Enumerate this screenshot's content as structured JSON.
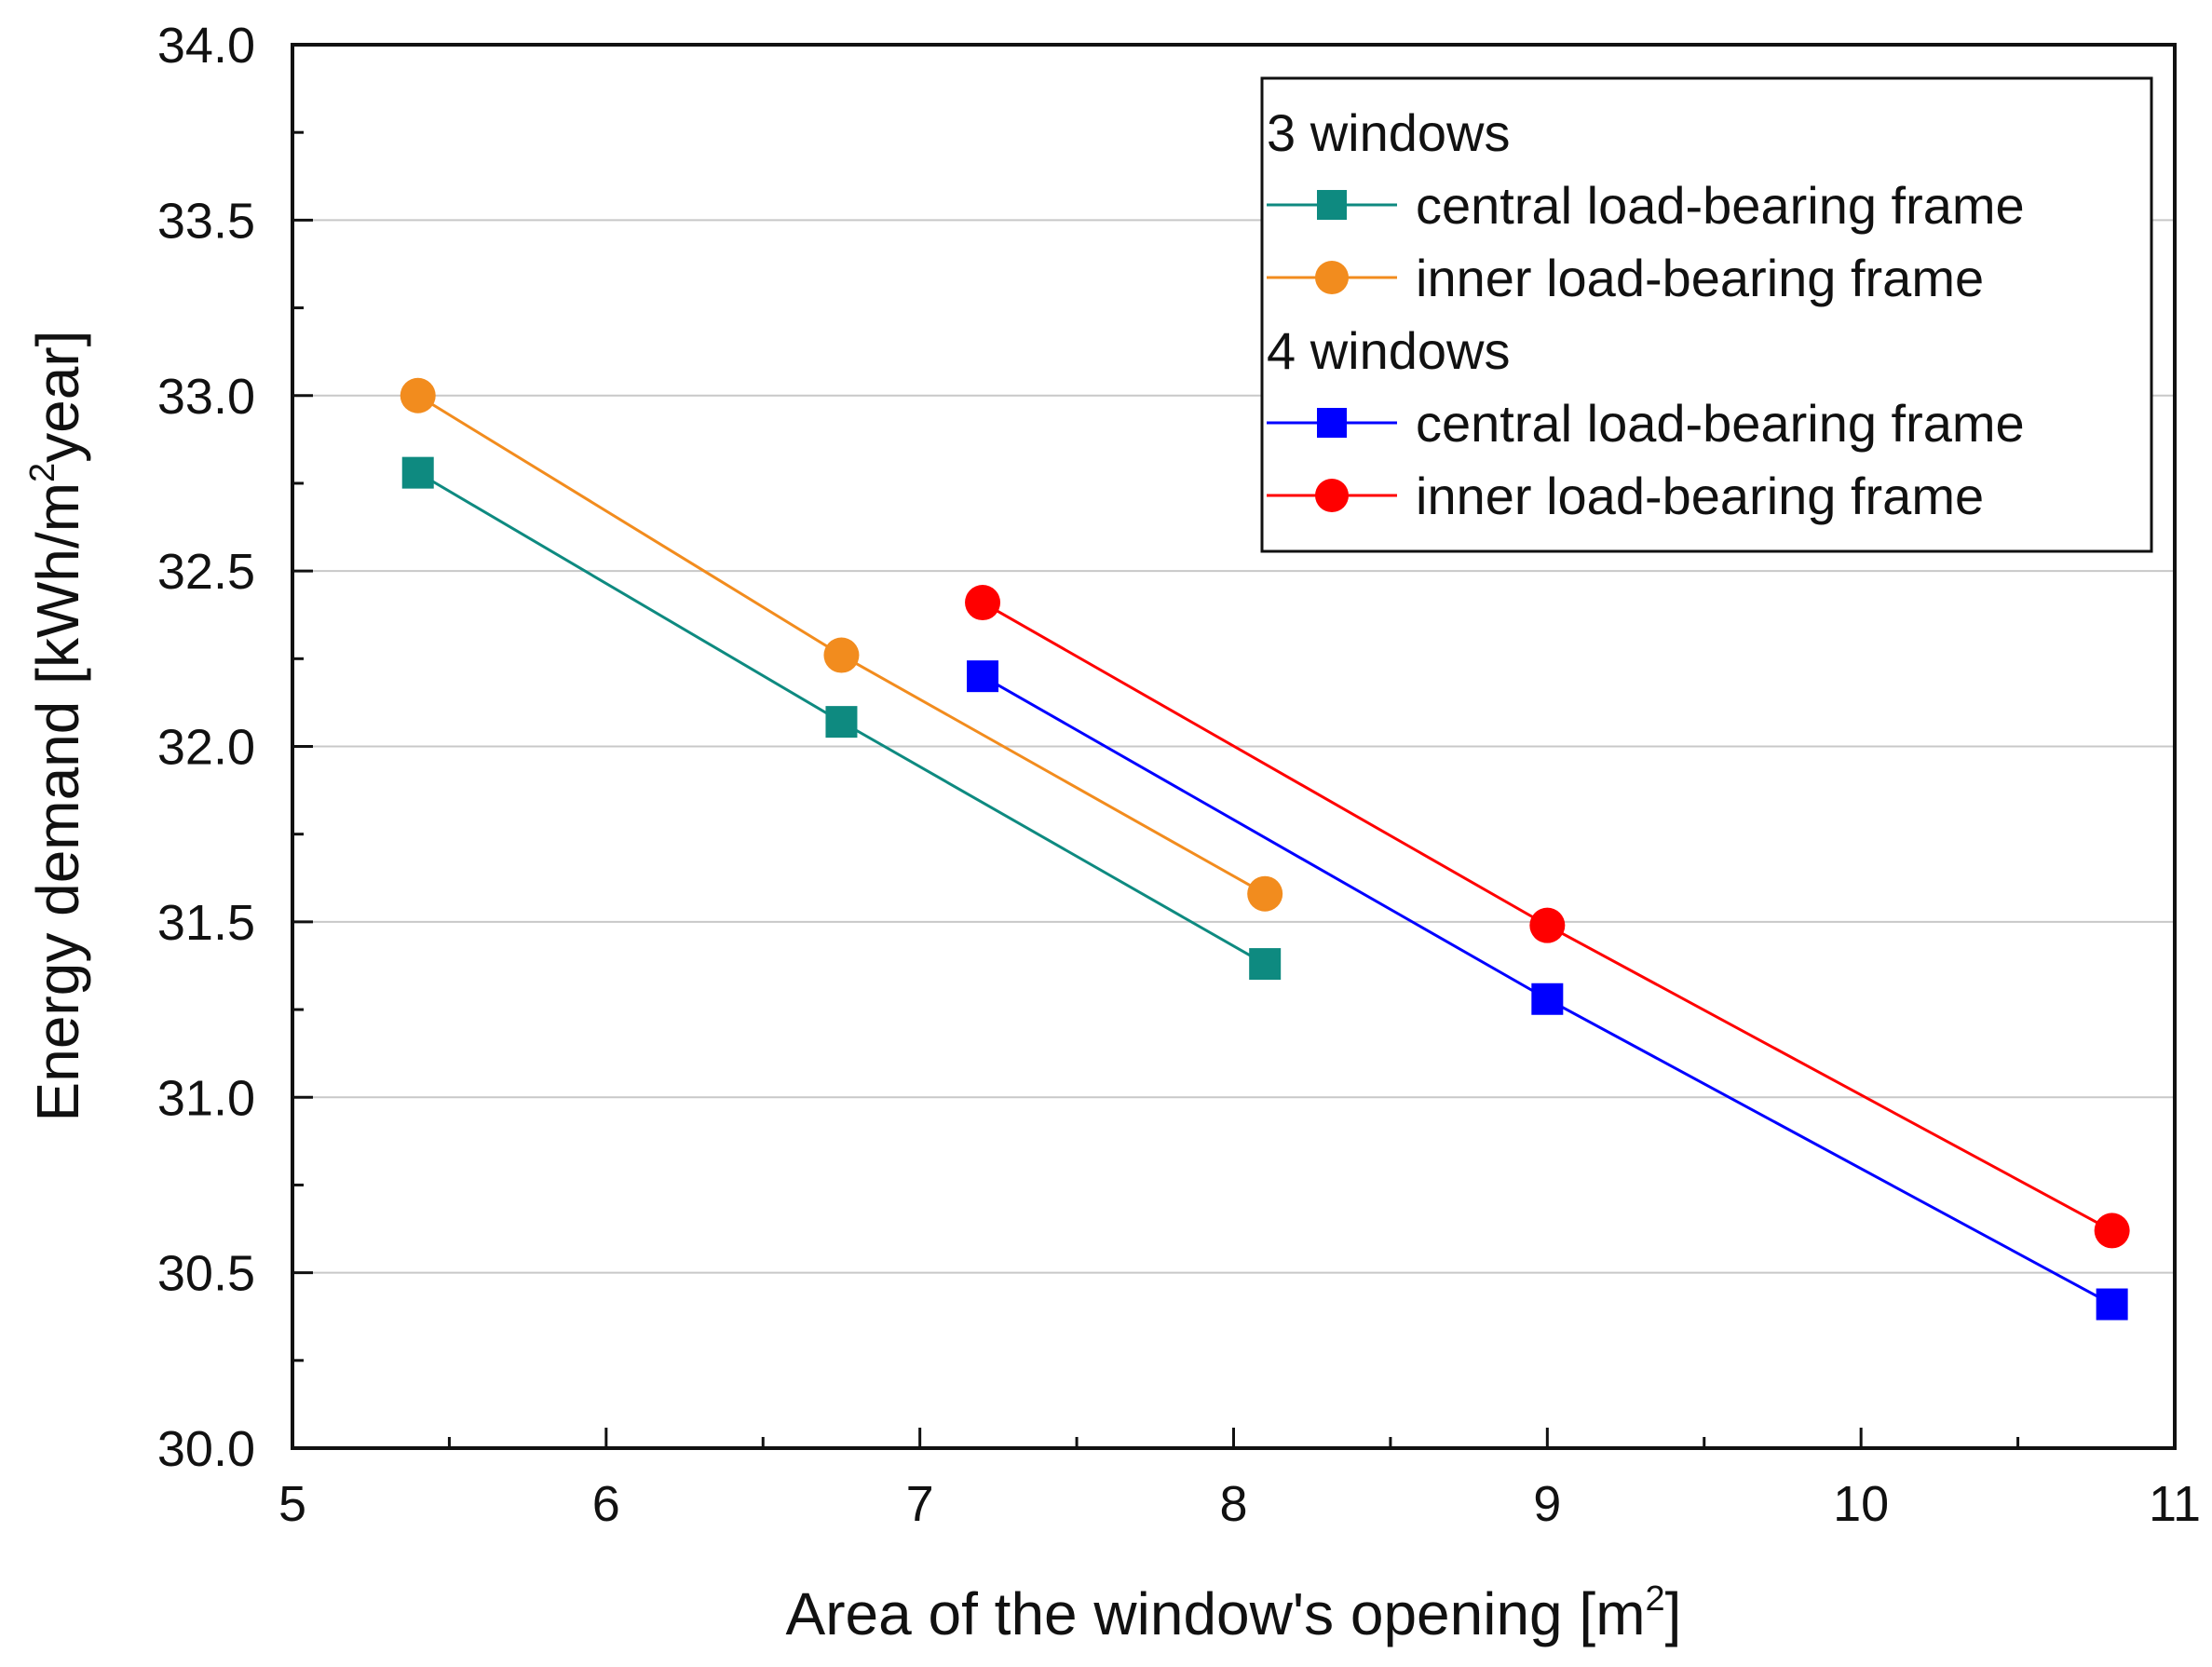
{
  "chart_data": {
    "type": "line",
    "xlabel": "Area of the window's opening [m",
    "xlabel_sup": "2",
    "xlabel_end": "]",
    "ylabel": "Energy demand [kWh/m",
    "ylabel_sup": "2",
    "ylabel_end": "year]",
    "xlim": [
      5,
      11
    ],
    "ylim": [
      30.0,
      34.0
    ],
    "x_ticks": [
      5,
      6,
      7,
      8,
      9,
      10,
      11
    ],
    "x_tick_labels": [
      "5",
      "6",
      "7",
      "8",
      "9",
      "10",
      "11"
    ],
    "y_ticks": [
      30.0,
      30.5,
      31.0,
      31.5,
      32.0,
      32.5,
      33.0,
      33.5,
      34.0
    ],
    "y_tick_labels": [
      "30.0",
      "30.5",
      "31.0",
      "31.5",
      "32.0",
      "32.5",
      "33.0",
      "33.5",
      "34.0"
    ],
    "grid": "horizontal",
    "legend_position": "top-right",
    "legend_groups": [
      {
        "title": "3 windows",
        "series": [
          0,
          1
        ]
      },
      {
        "title": "4 windows",
        "series": [
          2,
          3
        ]
      }
    ],
    "series": [
      {
        "name": "central load-bearing frame",
        "group": "3 windows",
        "marker": "square",
        "color": "#0e8a80",
        "x": [
          5.4,
          6.75,
          8.1
        ],
        "y": [
          32.78,
          32.07,
          31.38
        ]
      },
      {
        "name": "inner load-bearing frame",
        "group": "3 windows",
        "marker": "circle",
        "color": "#f28c1e",
        "x": [
          5.4,
          6.75,
          8.1
        ],
        "y": [
          33.0,
          32.26,
          31.58
        ]
      },
      {
        "name": "central load-bearing frame",
        "group": "4 windows",
        "marker": "square",
        "color": "#0000ff",
        "x": [
          7.2,
          9.0,
          10.8
        ],
        "y": [
          32.2,
          31.28,
          30.41
        ]
      },
      {
        "name": "inner load-bearing frame",
        "group": "4 windows",
        "marker": "circle",
        "color": "#ff0000",
        "x": [
          7.2,
          9.0,
          10.8
        ],
        "y": [
          32.41,
          31.49,
          30.62
        ]
      }
    ]
  }
}
